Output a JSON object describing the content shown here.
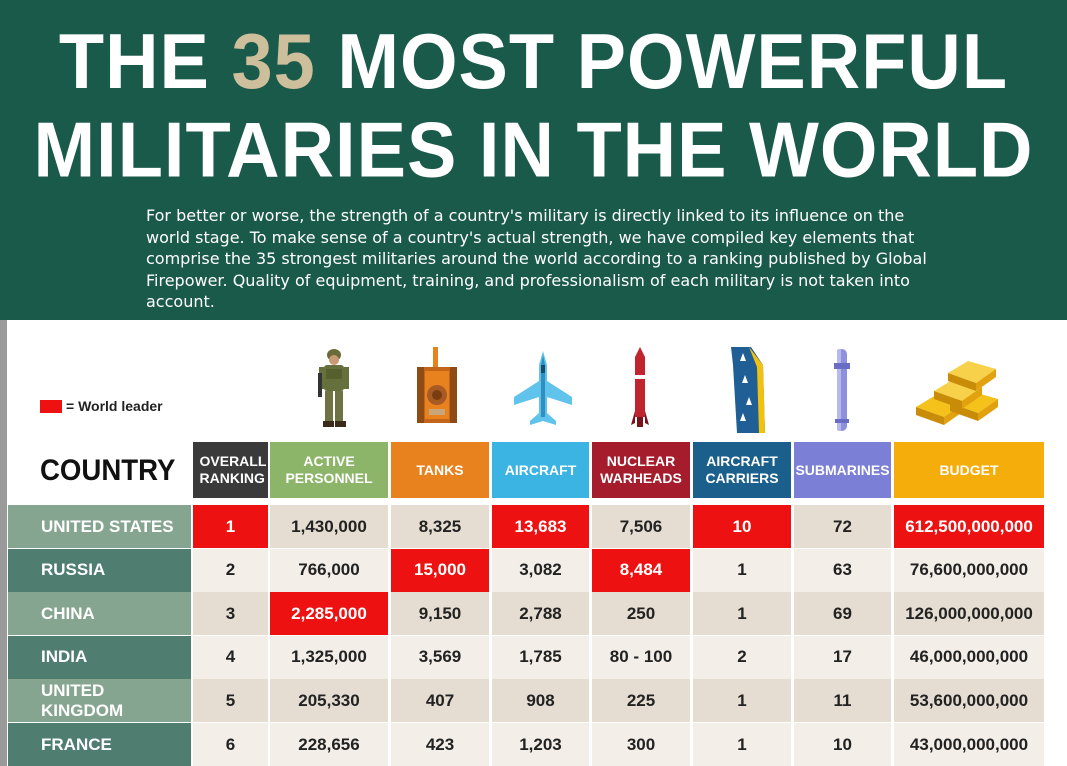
{
  "title": {
    "line1_pre": "THE ",
    "line1_num": "35",
    "line1_post": " MOST POWERFUL",
    "line2": "MILITARIES IN THE WORLD"
  },
  "intro": "For better or worse, the strength of a country's military is directly linked to its influence on the world stage. To make sense of a country's actual strength, we have compiled key elements that comprise the 35 strongest militaries around the world according to a ranking published by Global Firepower. Quality of equipment, training, and professionalism of each military is not taken into account.",
  "legend": {
    "label": "= World leader",
    "color": "#ee1111"
  },
  "table": {
    "country_heading": "COUNTRY",
    "columns": [
      {
        "key": "rank",
        "label": "OVERALL RANKING",
        "color": "#3a3a3a",
        "icon": "none"
      },
      {
        "key": "personnel",
        "label": "ACTIVE PERSONNEL",
        "color": "#8db56a",
        "icon": "soldier-icon"
      },
      {
        "key": "tanks",
        "label": "TANKS",
        "color": "#e8821e",
        "icon": "tank-icon"
      },
      {
        "key": "aircraft",
        "label": "AIRCRAFT",
        "color": "#3bb3e3",
        "icon": "jet-icon"
      },
      {
        "key": "warheads",
        "label": "NUCLEAR WARHEADS",
        "color": "#a51c2c",
        "icon": "missile-icon"
      },
      {
        "key": "carriers",
        "label": "AIRCRAFT CARRIERS",
        "color": "#1b5f8c",
        "icon": "carrier-icon"
      },
      {
        "key": "subs",
        "label": "SUBMARINES",
        "color": "#7b7fd6",
        "icon": "submarine-icon"
      },
      {
        "key": "budget",
        "label": "BUDGET",
        "color": "#f5ad0c",
        "icon": "gold-bars-icon"
      }
    ],
    "rows": [
      {
        "country": "UNITED STATES",
        "rank": "1",
        "personnel": "1,430,000",
        "tanks": "8,325",
        "aircraft": "13,683",
        "warheads": "7,506",
        "carriers": "10",
        "subs": "72",
        "budget": "612,500,000,000",
        "leaders": [
          "rank",
          "aircraft",
          "carriers",
          "budget"
        ]
      },
      {
        "country": "RUSSIA",
        "rank": "2",
        "personnel": "766,000",
        "tanks": "15,000",
        "aircraft": "3,082",
        "warheads": "8,484",
        "carriers": "1",
        "subs": "63",
        "budget": "76,600,000,000",
        "leaders": [
          "tanks",
          "warheads"
        ]
      },
      {
        "country": "CHINA",
        "rank": "3",
        "personnel": "2,285,000",
        "tanks": "9,150",
        "aircraft": "2,788",
        "warheads": "250",
        "carriers": "1",
        "subs": "69",
        "budget": "126,000,000,000",
        "leaders": [
          "personnel"
        ]
      },
      {
        "country": "INDIA",
        "rank": "4",
        "personnel": "1,325,000",
        "tanks": "3,569",
        "aircraft": "1,785",
        "warheads": "80 - 100",
        "carriers": "2",
        "subs": "17",
        "budget": "46,000,000,000",
        "leaders": []
      },
      {
        "country": "UNITED KINGDOM",
        "rank": "5",
        "personnel": "205,330",
        "tanks": "407",
        "aircraft": "908",
        "warheads": "225",
        "carriers": "1",
        "subs": "11",
        "budget": "53,600,000,000",
        "leaders": []
      },
      {
        "country": "FRANCE",
        "rank": "6",
        "personnel": "228,656",
        "tanks": "423",
        "aircraft": "1,203",
        "warheads": "300",
        "carriers": "1",
        "subs": "10",
        "budget": "43,000,000,000",
        "leaders": []
      }
    ]
  },
  "colors": {
    "header_bg": "#1a5a4a",
    "title_accent": "#cdbf9b",
    "country_light": "#86a591",
    "country_dark": "#4f7e70",
    "row_light": "#f3efe8",
    "row_dark": "#e5ddd1",
    "leader": "#ee1111"
  }
}
